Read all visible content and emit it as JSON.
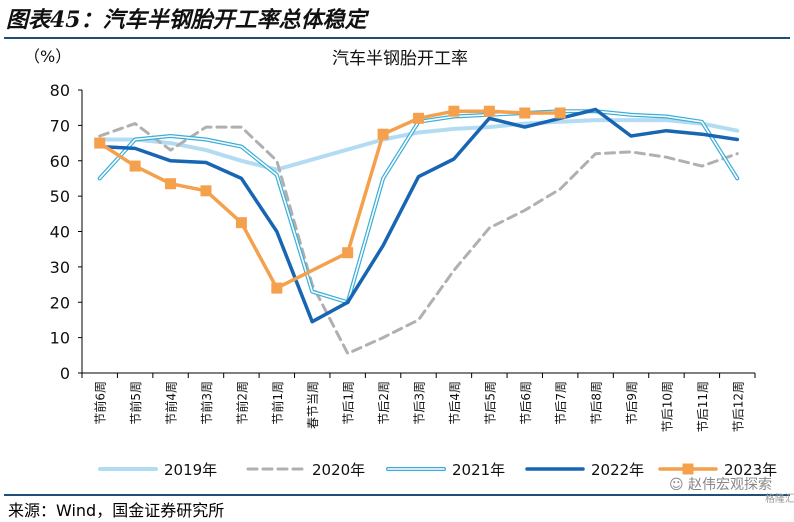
{
  "figure_title": "图表45：汽车半钢胎开工率总体稳定",
  "source": "来源：Wind，国金证券研究所",
  "watermark": "赵伟宏观探索",
  "watermark_sub": "格隆汇",
  "colors": {
    "2019": "#b3dcf2",
    "2020": "#b0b0b0",
    "2021": "#3aaed8",
    "2022": "#1866b3",
    "2023": "#f4a04c",
    "rule": "#1f4e79"
  },
  "chart_data": {
    "type": "line",
    "title": "汽车半钢胎开工率",
    "ylabel": "（%）",
    "ylim": [
      0,
      80
    ],
    "yticks": [
      0,
      10,
      20,
      30,
      40,
      50,
      60,
      70,
      80
    ],
    "categories": [
      "节前6周",
      "节前5周",
      "节前4周",
      "节前3周",
      "节前2周",
      "节前1周",
      "春节当周",
      "节后1周",
      "节后2周",
      "节后3周",
      "节后4周",
      "节后5周",
      "节后6周",
      "节后7周",
      "节后8周",
      "节后9周",
      "节后10周",
      "节后11周",
      "节后12周"
    ],
    "legend_position": "bottom",
    "series": [
      {
        "name": "2019年",
        "style": "solid-thick",
        "values": [
          66,
          66,
          65,
          63,
          60,
          57.5,
          null,
          null,
          66,
          68,
          69,
          69.5,
          70.5,
          71,
          71.5,
          71.5,
          71.5,
          70.5,
          68.5
        ]
      },
      {
        "name": "2020年",
        "style": "dashed",
        "values": [
          67,
          70.5,
          63,
          69.5,
          69.5,
          60,
          25,
          5.5,
          10,
          15,
          29,
          41,
          46,
          52,
          62,
          62.5,
          61,
          58.5,
          62
        ]
      },
      {
        "name": "2021年",
        "style": "double",
        "values": [
          55,
          66,
          67,
          66,
          64,
          56,
          23,
          20,
          55,
          71,
          72.5,
          73,
          73.5,
          74,
          74,
          73,
          72.5,
          71,
          55
        ]
      },
      {
        "name": "2022年",
        "style": "solid-dark",
        "values": [
          64,
          63.5,
          60,
          59.5,
          55,
          40,
          14.5,
          20,
          36,
          55.5,
          60.5,
          72,
          69.5,
          72,
          74.5,
          67,
          68.5,
          67.5,
          66
        ]
      },
      {
        "name": "2023年",
        "style": "marker",
        "values": [
          65,
          58.5,
          53.5,
          51.5,
          42.5,
          24,
          null,
          34,
          67.5,
          72,
          74,
          74,
          73.5,
          73.5,
          null,
          null,
          null,
          null,
          null
        ]
      }
    ]
  }
}
